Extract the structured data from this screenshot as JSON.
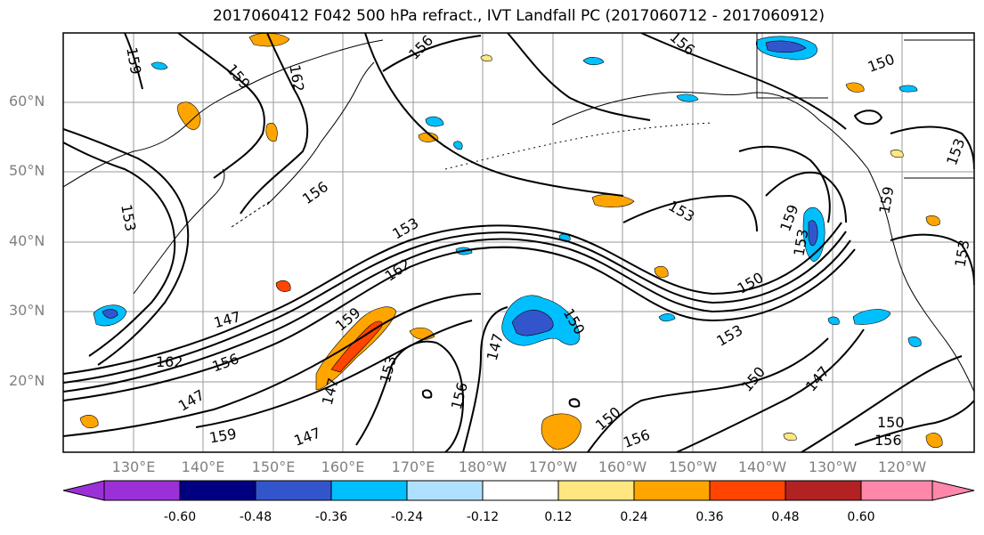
{
  "title": "2017060412 F042 500 hPa refract., IVT Landfall PC (2017060712 - 2017060912)",
  "lat_labels": [
    "60°N",
    "50°N",
    "40°N",
    "30°N",
    "20°N"
  ],
  "lon_labels": [
    "130°E",
    "140°E",
    "150°E",
    "160°E",
    "170°E",
    "180°W",
    "170°W",
    "160°W",
    "150°W",
    "140°W",
    "130°W",
    "120°W"
  ],
  "contour_labels": [
    "159",
    "162",
    "156",
    "156",
    "159",
    "150",
    "153",
    "156",
    "153",
    "162",
    "159",
    "147",
    "156",
    "153",
    "147",
    "162",
    "147",
    "159",
    "147",
    "153",
    "156",
    "147",
    "150",
    "153",
    "150",
    "159",
    "150",
    "147",
    "150",
    "156",
    "150",
    "153",
    "153",
    "159",
    "153",
    "156"
  ],
  "colorbar": {
    "ticks": [
      "-0.60",
      "-0.48",
      "-0.36",
      "-0.24",
      "-0.12",
      "0.12",
      "0.24",
      "0.36",
      "0.48",
      "0.60"
    ],
    "colors": [
      "#9b30d9",
      "#000080",
      "#3355cc",
      "#00bfff",
      "#b0e0ff",
      "#ffffff",
      "#ffe680",
      "#ffa500",
      "#ff4500",
      "#b22222",
      "#ff88aa"
    ]
  }
}
